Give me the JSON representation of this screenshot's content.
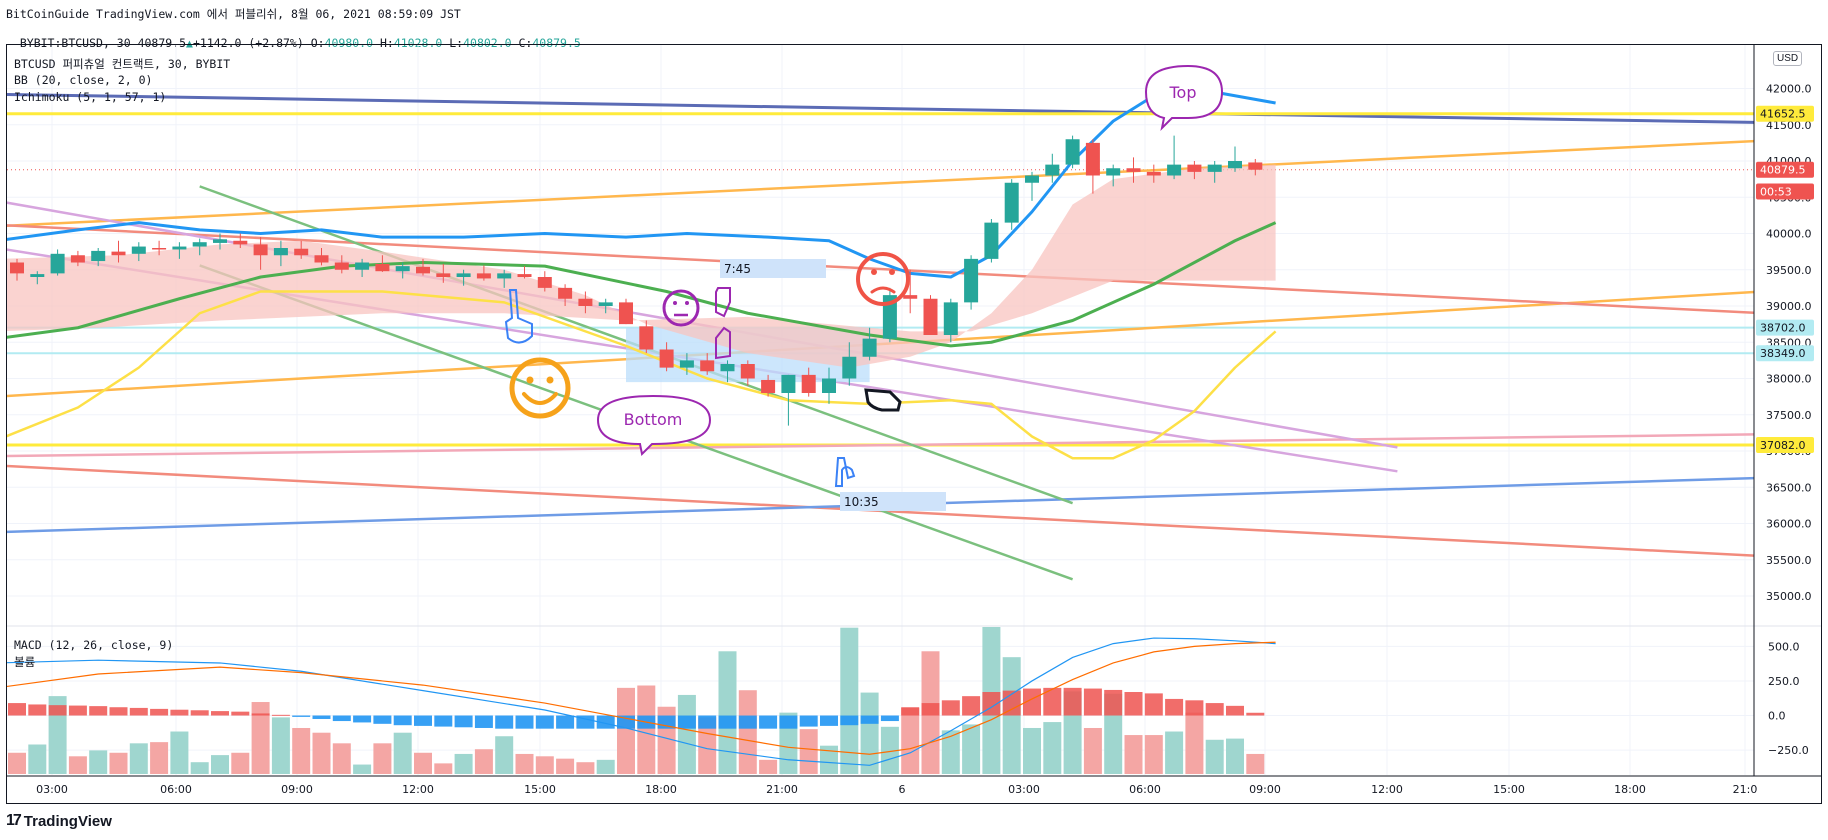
{
  "header": {
    "line1": "BitCoinGuide TradingView.com 에서 퍼블리쉬, 8월 06, 2021 08:59:09 JST",
    "symbol": "BYBIT:BTCUSD, 30",
    "last": "40879.5",
    "change": "+1142.0 (+2.87%)",
    "open_label": "O:",
    "open": "40980.0",
    "high_label": "H:",
    "high": "41028.0",
    "low_label": "L:",
    "low": "40802.0",
    "close_label": "C:",
    "close": "40879.5"
  },
  "legend": {
    "title": "BTCUSD 퍼피츄얼 컨트랙트, 30, BYBIT",
    "bb": "BB (20, close, 2, 0)",
    "ichimoku": "Ichimoku (5, 1, 57, 1)",
    "macd": "MACD (12, 26, close, 9)",
    "volume": "볼륨"
  },
  "currency": "USD",
  "annotations": {
    "top": "Top",
    "bottom": "Bottom",
    "time1": "7:45",
    "time2": "10:35"
  },
  "footer": {
    "brand": "TradingView"
  },
  "colors": {
    "up": "#26a69a",
    "down": "#ef5350",
    "bb": "#2196f3",
    "ichimoku_fast": "#4caf50",
    "ichimoku_slow": "#ffeb3b",
    "cloud": "#f8c4c0",
    "macd_line": "#2196f3",
    "signal_line": "#ff6d00"
  },
  "chart_data": {
    "type": "candlestick",
    "price_axis": {
      "ticks": [
        "42000.0",
        "41500.0",
        "41000.0",
        "40500.0",
        "40000.0",
        "39500.0",
        "39000.0",
        "38500.0",
        "38000.0",
        "37500.0",
        "37000.0",
        "36500.0",
        "36000.0",
        "35500.0",
        "35000.0"
      ],
      "tick_values": [
        42000,
        41500,
        41000,
        40500,
        40000,
        39500,
        39000,
        38500,
        38000,
        37500,
        37000,
        36500,
        36000,
        35500,
        35000
      ],
      "ylim": [
        34600,
        42600
      ]
    },
    "price_labels": [
      {
        "text": "41652.5",
        "value": 41652.5,
        "bg": "#ffeb3b",
        "fg": "#131722"
      },
      {
        "text": "40879.5",
        "value": 40879.5,
        "bg": "#ef5350",
        "fg": "#ffffff"
      },
      {
        "text": "00:53",
        "value": 40580,
        "bg": "#ef5350",
        "fg": "#ffffff"
      },
      {
        "text": "38702.0",
        "value": 38702,
        "bg": "#b2ebf2",
        "fg": "#131722"
      },
      {
        "text": "38349.0",
        "value": 38349,
        "bg": "#b2ebf2",
        "fg": "#131722"
      },
      {
        "text": "37082.0",
        "value": 37082,
        "bg": "#ffeb3b",
        "fg": "#131722"
      }
    ],
    "time_axis": [
      "03:00",
      "06:00",
      "09:00",
      "12:00",
      "15:00",
      "18:00",
      "21:00",
      "6",
      "03:00",
      "06:00",
      "09:00",
      "12:00",
      "15:00",
      "18:00",
      "21:0"
    ],
    "macd_axis": {
      "ticks": [
        "500.0",
        "250.0",
        "0.0",
        "−250.0"
      ],
      "tick_values": [
        500,
        250,
        0,
        -250
      ],
      "ylim": [
        -430,
        640
      ]
    },
    "candles": [
      [
        39600,
        39650,
        39350,
        39450
      ],
      [
        39400,
        39480,
        39300,
        39440
      ],
      [
        39450,
        39780,
        39420,
        39720
      ],
      [
        39700,
        39760,
        39550,
        39600
      ],
      [
        39620,
        39800,
        39550,
        39760
      ],
      [
        39750,
        39900,
        39600,
        39700
      ],
      [
        39720,
        39880,
        39620,
        39820
      ],
      [
        39800,
        39900,
        39700,
        39780
      ],
      [
        39780,
        39880,
        39650,
        39820
      ],
      [
        39820,
        39930,
        39700,
        39880
      ],
      [
        39870,
        40000,
        39780,
        39920
      ],
      [
        39900,
        40000,
        39800,
        39850
      ],
      [
        39850,
        39950,
        39500,
        39700
      ],
      [
        39700,
        39900,
        39550,
        39800
      ],
      [
        39790,
        39900,
        39650,
        39700
      ],
      [
        39700,
        39800,
        39560,
        39600
      ],
      [
        39600,
        39700,
        39450,
        39500
      ],
      [
        39500,
        39650,
        39400,
        39600
      ],
      [
        39580,
        39700,
        39470,
        39480
      ],
      [
        39480,
        39600,
        39380,
        39550
      ],
      [
        39540,
        39650,
        39420,
        39450
      ],
      [
        39450,
        39580,
        39320,
        39400
      ],
      [
        39400,
        39500,
        39280,
        39450
      ],
      [
        39450,
        39560,
        39350,
        39380
      ],
      [
        39380,
        39500,
        39250,
        39450
      ],
      [
        39440,
        39550,
        39380,
        39400
      ],
      [
        39400,
        39480,
        39200,
        39250
      ],
      [
        39250,
        39300,
        39000,
        39100
      ],
      [
        39100,
        39200,
        38900,
        39000
      ],
      [
        39000,
        39100,
        38900,
        39050
      ],
      [
        39050,
        39100,
        38750,
        38750
      ],
      [
        38720,
        38800,
        38350,
        38400
      ],
      [
        38400,
        38500,
        38100,
        38150
      ],
      [
        38150,
        38350,
        38050,
        38250
      ],
      [
        38250,
        38350,
        38050,
        38100
      ],
      [
        38100,
        38250,
        37950,
        38200
      ],
      [
        38200,
        38250,
        37900,
        38000
      ],
      [
        37980,
        38050,
        37750,
        37800
      ],
      [
        37800,
        38050,
        37350,
        38050
      ],
      [
        38050,
        38150,
        37750,
        37800
      ],
      [
        37800,
        38150,
        37650,
        38000
      ],
      [
        38000,
        38500,
        37900,
        38300
      ],
      [
        38300,
        38700,
        38250,
        38550
      ],
      [
        38550,
        39250,
        38500,
        39150
      ],
      [
        39150,
        39500,
        38900,
        39100
      ],
      [
        39100,
        39150,
        38600,
        38600
      ],
      [
        38600,
        39100,
        38500,
        39050
      ],
      [
        39050,
        39700,
        38950,
        39650
      ],
      [
        39650,
        40200,
        39600,
        40150
      ],
      [
        40150,
        40750,
        40050,
        40700
      ],
      [
        40700,
        40850,
        40450,
        40800
      ],
      [
        40800,
        41100,
        40700,
        40950
      ],
      [
        40950,
        41350,
        40900,
        41300
      ],
      [
        41250,
        41300,
        40550,
        40800
      ],
      [
        40800,
        40950,
        40650,
        40900
      ],
      [
        40900,
        41050,
        40700,
        40850
      ],
      [
        40850,
        40950,
        40700,
        40800
      ],
      [
        40800,
        41350,
        40750,
        40950
      ],
      [
        40950,
        41000,
        40750,
        40850
      ],
      [
        40850,
        41000,
        40700,
        40950
      ],
      [
        40900,
        41200,
        40850,
        41000
      ],
      [
        40980,
        41028,
        40802,
        40879.5
      ]
    ],
    "macd_histogram": [
      90,
      80,
      75,
      72,
      68,
      60,
      55,
      48,
      42,
      38,
      32,
      28,
      15,
      5,
      -10,
      -25,
      -40,
      -50,
      -60,
      -70,
      -75,
      -80,
      -85,
      -90,
      -95,
      -95,
      -95,
      -95,
      -95,
      -95,
      -95,
      -95,
      -95,
      -95,
      -95,
      -95,
      -95,
      -95,
      -95,
      -80,
      -75,
      -70,
      -60,
      -40,
      60,
      90,
      110,
      140,
      170,
      180,
      195,
      200,
      200,
      195,
      185,
      170,
      160,
      120,
      110,
      90,
      70,
      20
    ],
    "volume": [
      0.18,
      0.25,
      0.66,
      0.15,
      0.2,
      0.18,
      0.26,
      0.27,
      0.36,
      0.1,
      0.16,
      0.18,
      0.61,
      0.48,
      0.39,
      0.35,
      0.26,
      0.08,
      0.26,
      0.35,
      0.18,
      0.09,
      0.17,
      0.21,
      0.32,
      0.17,
      0.15,
      0.13,
      0.1,
      0.12,
      0.73,
      0.75,
      0.57,
      0.67,
      0.48,
      1.04,
      0.71,
      0.12,
      0.52,
      0.38,
      0.24,
      1.24,
      0.69,
      0.4,
      0.56,
      1.04,
      0.37,
      0.42,
      1.29,
      0.99,
      0.39,
      0.44,
      0.7,
      0.39,
      0.68,
      0.33,
      0.33,
      0.36,
      0.52,
      0.29,
      0.3,
      0.17
    ]
  }
}
